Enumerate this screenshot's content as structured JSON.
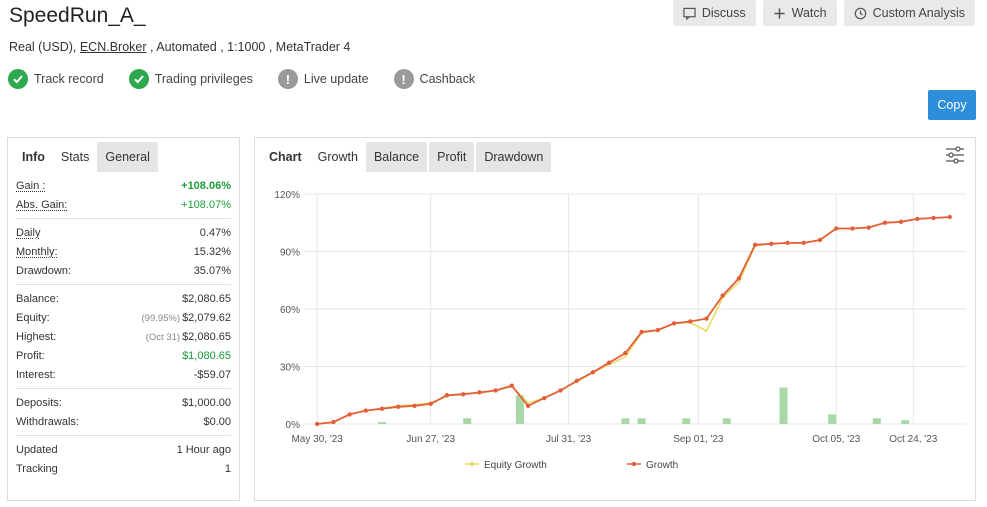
{
  "header": {
    "title": "SpeedRun_A_",
    "subtitle_prefix": "Real (USD), ",
    "subtitle_link": "ECN.Broker",
    "subtitle_suffix": " , Automated , 1:1000 , MetaTrader 4"
  },
  "actions": {
    "discuss": "Discuss",
    "watch": "Watch",
    "custom_analysis": "Custom Analysis",
    "copy": "Copy"
  },
  "badges": [
    {
      "label": "Track record",
      "status": "verified",
      "icon": "check-icon"
    },
    {
      "label": "Trading privileges",
      "status": "verified",
      "icon": "check-icon"
    },
    {
      "label": "Live update",
      "status": "unverified",
      "icon": "exclamation-icon"
    },
    {
      "label": "Cashback",
      "status": "unverified",
      "icon": "exclamation-icon"
    }
  ],
  "info_tabs": [
    "Info",
    "Stats",
    "General"
  ],
  "stats": {
    "gain_label": "Gain :",
    "gain": "+108.06%",
    "abs_gain_label": "Abs. Gain:",
    "abs_gain": "+108.07%",
    "daily_label": "Daily",
    "daily": "0.47%",
    "monthly_label": "Monthly:",
    "monthly": "15.32%",
    "drawdown_label": "Drawdown:",
    "drawdown": "35.07%",
    "balance_label": "Balance:",
    "balance": "$2,080.65",
    "equity_label": "Equity:",
    "equity_pct": "(99.95%)",
    "equity": "$2,079.62",
    "highest_label": "Highest:",
    "highest_date": "(Oct 31)",
    "highest": "$2,080.65",
    "profit_label": "Profit:",
    "profit": "$1,080.65",
    "interest_label": "Interest:",
    "interest": "-$59.07",
    "deposits_label": "Deposits:",
    "deposits": "$1,000.00",
    "withdrawals_label": "Withdrawals:",
    "withdrawals": "$0.00",
    "updated_label": "Updated",
    "updated": "1 Hour ago",
    "tracking_label": "Tracking",
    "tracking": "1"
  },
  "chart_tabs": [
    "Chart",
    "Growth",
    "Balance",
    "Profit",
    "Drawdown"
  ],
  "colors": {
    "growth": "#e2603a",
    "equity": "#e8dc6a",
    "bars": "#a8d8a8",
    "grid": "#e6e6e6",
    "green": "#1a9e3b",
    "copy_blue": "#2d8fdc"
  },
  "chart_data": {
    "type": "line",
    "x_ticks": [
      "May 30, '23",
      "Jun 27, '23",
      "Jul 31, '23",
      "Sep 01, '23",
      "Oct 05, '23",
      "Oct 24, '23"
    ],
    "x_tick_days": [
      0,
      28,
      62,
      94,
      128,
      147
    ],
    "y_ticks": [
      "0%",
      "30%",
      "60%",
      "90%",
      "120%"
    ],
    "ylim": [
      0,
      120
    ],
    "xlim": [
      -3,
      160
    ],
    "legend": [
      "Equity Growth",
      "Growth"
    ],
    "legend_position": "bottom",
    "series": [
      {
        "name": "Growth",
        "x": [
          0,
          4,
          8,
          12,
          16,
          20,
          24,
          28,
          32,
          36,
          40,
          44,
          48,
          52,
          56,
          60,
          64,
          68,
          72,
          76,
          80,
          84,
          88,
          92,
          96,
          100,
          104,
          108,
          112,
          116,
          120,
          124,
          128,
          132,
          136,
          140,
          144,
          148,
          152,
          156
        ],
        "y": [
          0,
          1,
          5,
          7,
          8,
          9,
          9.5,
          10.5,
          15,
          15.5,
          16.5,
          17.5,
          20,
          9.5,
          13.5,
          17.5,
          22.5,
          27,
          32,
          37,
          48,
          49,
          52.5,
          53.5,
          55,
          67,
          76,
          93.5,
          94,
          94.5,
          94.5,
          96,
          102,
          102,
          102.5,
          105,
          105.5,
          107,
          107.5,
          108
        ]
      },
      {
        "name": "Equity Growth",
        "x": [
          0,
          4,
          8,
          12,
          16,
          20,
          24,
          28,
          32,
          36,
          40,
          44,
          48,
          52,
          56,
          60,
          64,
          68,
          72,
          76,
          80,
          84,
          88,
          92,
          96,
          100,
          104,
          108,
          112,
          116,
          120,
          124,
          128,
          132,
          136,
          140,
          144,
          148,
          152,
          156
        ],
        "y": [
          0,
          1,
          5,
          7,
          8,
          9.5,
          10,
          11,
          14.5,
          16,
          16,
          17.5,
          19.5,
          11,
          13.5,
          17.5,
          22,
          27,
          31,
          35,
          47.5,
          49,
          52.5,
          53,
          48.5,
          66,
          74,
          93,
          94,
          94.5,
          94.5,
          96,
          102,
          102,
          102.5,
          105,
          105.5,
          107,
          107.5,
          108
        ]
      }
    ],
    "bars": {
      "name": "Profit",
      "x": [
        16,
        37,
        50,
        76,
        80,
        91,
        101,
        115,
        127,
        138,
        145
      ],
      "y": [
        1,
        3,
        15,
        3,
        3,
        3,
        3,
        19,
        5,
        3,
        2
      ]
    }
  }
}
